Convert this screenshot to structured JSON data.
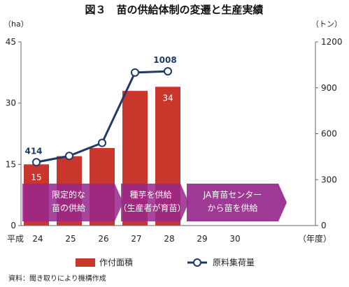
{
  "chart_data": {
    "type": "bar+line",
    "title": "図３　苗の供給体制の変遷と生産実績",
    "x_prefix": "平成",
    "x_unit": "（年度）",
    "categories": [
      "24",
      "25",
      "26",
      "27",
      "28",
      "29",
      "30"
    ],
    "left_axis": {
      "unit": "（ha）",
      "ylim": [
        0,
        45
      ],
      "ticks": [
        "0",
        "15",
        "30",
        "45"
      ]
    },
    "right_axis": {
      "unit": "（トン）",
      "ylim": [
        0,
        1200
      ],
      "ticks": [
        "0",
        "300",
        "600",
        "900",
        "1200"
      ]
    },
    "series": [
      {
        "name": "作付面積",
        "type": "bar",
        "axis": "left",
        "color": "#c9372c",
        "values": [
          15,
          17,
          19,
          33,
          34,
          null,
          null
        ],
        "data_labels": [
          "15",
          "",
          "",
          "",
          "34",
          "",
          ""
        ]
      },
      {
        "name": "原料集荷量",
        "type": "line",
        "axis": "right",
        "color": "#1f3a68",
        "values": [
          414,
          455,
          540,
          1000,
          1008,
          null,
          null
        ],
        "data_labels": [
          "414",
          "",
          "",
          "",
          "1008",
          "",
          ""
        ]
      }
    ],
    "annotations": [
      {
        "lines": [
          "限定的な",
          "苗の供給"
        ],
        "from": "24",
        "to": "26"
      },
      {
        "lines": [
          "種芋を供給",
          "（生産者が育苗）"
        ],
        "from": "27",
        "to": "28"
      },
      {
        "lines": [
          "JA育苗センター",
          "から苗を供給"
        ],
        "from": "29",
        "to": "30"
      }
    ],
    "grid": false,
    "legend_position": "bottom",
    "source": "資料：聞き取りにより機構作成"
  }
}
